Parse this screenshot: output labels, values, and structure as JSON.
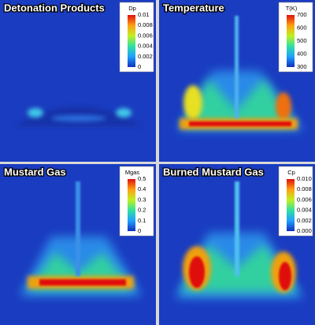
{
  "panels": [
    {
      "title": "Detonation Products",
      "colorbar_label": "Dp",
      "ticks": [
        "0.01",
        "0.008",
        "0.006",
        "0.004",
        "0.002",
        "0"
      ]
    },
    {
      "title": "Temperature",
      "colorbar_label": "T(K)",
      "ticks": [
        "700",
        "600",
        "500",
        "400",
        "300"
      ]
    },
    {
      "title": "Mustard Gas",
      "colorbar_label": "Mgas",
      "ticks": [
        "0.5",
        "0.4",
        "0.3",
        "0.2",
        "0.1",
        "0"
      ]
    },
    {
      "title": "Burned Mustard Gas",
      "colorbar_label": "Cp",
      "ticks": [
        "0.010",
        "0.008",
        "0.006",
        "0.004",
        "0.002",
        "0.000"
      ]
    }
  ]
}
